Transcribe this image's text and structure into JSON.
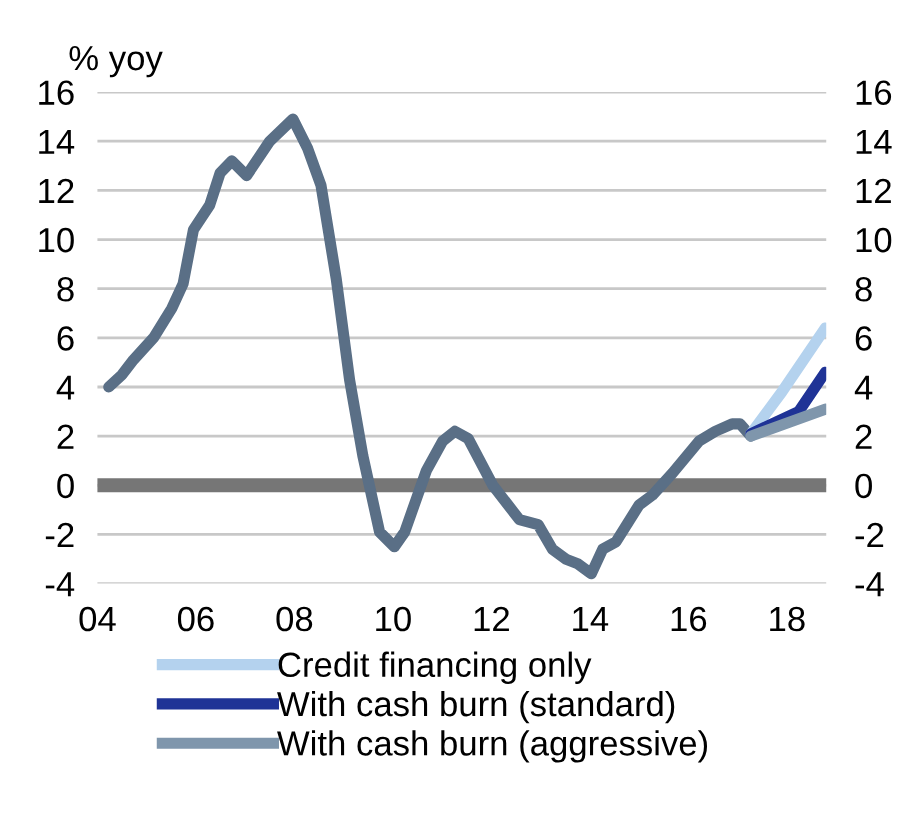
{
  "chart_data": {
    "type": "line",
    "ylabel": "% yoy",
    "series": [
      {
        "color": "#5a6f86",
        "x": [
          2004.23,
          2004.5,
          2004.73,
          2005.14,
          2005.51,
          2005.74,
          2005.95,
          2006.28,
          2006.49,
          2006.73,
          2007.03,
          2007.5,
          2007.97,
          2008.27,
          2008.54,
          2008.85,
          2009.12,
          2009.39,
          2009.73,
          2010.03,
          2010.24,
          2010.68,
          2011.01,
          2011.26,
          2011.53,
          2012.03,
          2012.57,
          2012.95,
          2013.24,
          2013.51,
          2013.76,
          2014.03,
          2014.26,
          2014.53,
          2015.0,
          2015.27,
          2015.68,
          2016.22,
          2016.55,
          2016.89,
          2017.05,
          2017.27
        ],
        "values": [
          4.0,
          4.5,
          5.1,
          6.0,
          7.2,
          8.2,
          10.4,
          11.4,
          12.7,
          13.2,
          12.6,
          14.0,
          14.9,
          13.7,
          12.2,
          8.4,
          4.3,
          1.2,
          -1.9,
          -2.5,
          -1.9,
          0.6,
          1.8,
          2.2,
          1.9,
          0.0,
          -1.4,
          -1.6,
          -2.6,
          -3.0,
          -3.2,
          -3.6,
          -2.6,
          -2.3,
          -0.8,
          -0.4,
          0.5,
          1.8,
          2.2,
          2.5,
          2.5,
          2.0
        ]
      },
      {
        "name": "Credit financing only",
        "color": "#b4d2ee",
        "x": [
          2017.27,
          2017.9,
          2018.78
        ],
        "values": [
          2.1,
          3.8,
          6.4
        ]
      },
      {
        "name": "With cash burn (standard)",
        "color": "#1f3396",
        "x": [
          2017.27,
          2018.24,
          2018.78
        ],
        "values": [
          2.1,
          3.0,
          4.6
        ]
      },
      {
        "name": "With cash burn (aggressive)",
        "color": "#7f96ac",
        "x": [
          2017.27,
          2018.78
        ],
        "values": [
          2.0,
          3.1
        ]
      }
    ],
    "xlim": [
      2004,
      2018.8
    ],
    "xticks": [
      {
        "value": 2004,
        "label": "04"
      },
      {
        "value": 2006,
        "label": "06"
      },
      {
        "value": 2008,
        "label": "08"
      },
      {
        "value": 2010,
        "label": "10"
      },
      {
        "value": 2012,
        "label": "12"
      },
      {
        "value": 2014,
        "label": "14"
      },
      {
        "value": 2016,
        "label": "16"
      },
      {
        "value": 2018,
        "label": "18"
      }
    ],
    "ylim": [
      -4,
      16
    ],
    "yticks": [
      -4,
      -2,
      0,
      2,
      4,
      6,
      8,
      10,
      12,
      14,
      16
    ],
    "y2lim": [
      -4,
      16
    ],
    "y2ticks": [
      -4,
      -2,
      0,
      2,
      4,
      6,
      8,
      10,
      12,
      14,
      16
    ],
    "ref_lines": [
      {
        "axis": "y",
        "value": 0,
        "color": "#767676"
      }
    ],
    "grid": "y",
    "legend": "bottom",
    "line_style": "solid",
    "marker": "none"
  }
}
